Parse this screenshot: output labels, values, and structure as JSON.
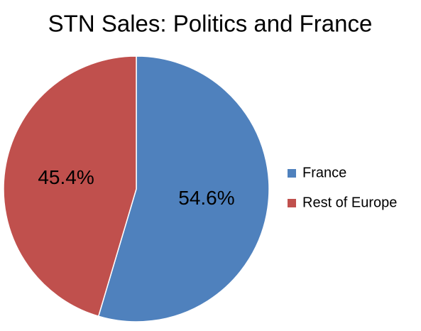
{
  "chart_data": {
    "type": "pie",
    "title": "STN Sales: Politics and France",
    "categories": [
      "France",
      "Rest of Europe"
    ],
    "values": [
      54.6,
      45.4
    ],
    "value_labels": [
      "54.6%",
      "45.4%"
    ],
    "colors": [
      "#4f81bd",
      "#c0504d"
    ],
    "legend": "right"
  }
}
